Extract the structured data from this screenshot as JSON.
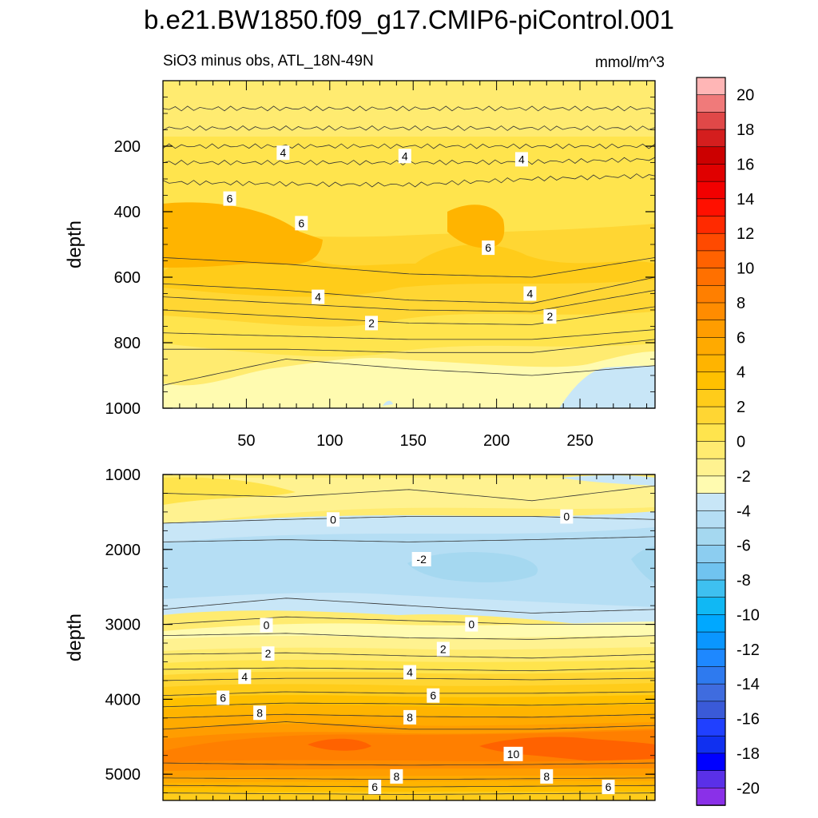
{
  "page": {
    "title": "b.e21.BW1850.f09_g17.CMIP6-piControl.001",
    "subtitle_left": "SiO3 minus obs, ATL_18N-49N",
    "subtitle_right": "mmol/m^3"
  },
  "chart_data": [
    {
      "type": "contour",
      "panel": "upper",
      "xlabel": "",
      "ylabel": "depth",
      "xlim": [
        0,
        295
      ],
      "ylim": [
        1000,
        0
      ],
      "x_ticks": [
        50,
        100,
        150,
        200,
        250
      ],
      "y_ticks": [
        200,
        400,
        600,
        800,
        1000
      ],
      "contour_interval": 1,
      "contour_lines": [
        {
          "level": 5.5,
          "depth": [
            85,
            85,
            85,
            85,
            85
          ]
        },
        {
          "level": 5,
          "depth": [
            145,
            145,
            145,
            145,
            145
          ]
        },
        {
          "level": 4.5,
          "depth": [
            200,
            200,
            200,
            200,
            200
          ]
        },
        {
          "level": 4,
          "depth": [
            250,
            250,
            250,
            248,
            240
          ]
        },
        {
          "level": 4.5,
          "depth": [
            310,
            315,
            318,
            300,
            290
          ]
        },
        {
          "level": 5,
          "depth": [
            540,
            560,
            590,
            600,
            540
          ]
        },
        {
          "level": 4.5,
          "depth": [
            620,
            640,
            670,
            680,
            600
          ]
        },
        {
          "level": 4,
          "depth": [
            660,
            680,
            700,
            705,
            640
          ]
        },
        {
          "level": 3,
          "depth": [
            700,
            720,
            740,
            745,
            690
          ]
        },
        {
          "level": 2,
          "depth": [
            770,
            780,
            790,
            790,
            760
          ]
        },
        {
          "level": 1.5,
          "depth": [
            820,
            820,
            830,
            830,
            790
          ]
        },
        {
          "level": 1,
          "depth": [
            930,
            850,
            880,
            900,
            870
          ]
        }
      ],
      "contour_labels": [
        {
          "text": "4",
          "x": 72,
          "depth": 220
        },
        {
          "text": "4",
          "x": 145,
          "depth": 230
        },
        {
          "text": "4",
          "x": 215,
          "depth": 240
        },
        {
          "text": "6",
          "x": 40,
          "depth": 360
        },
        {
          "text": "6",
          "x": 83,
          "depth": 435
        },
        {
          "text": "6",
          "x": 195,
          "depth": 510
        },
        {
          "text": "4",
          "x": 93,
          "depth": 660
        },
        {
          "text": "4",
          "x": 220,
          "depth": 650
        },
        {
          "text": "2",
          "x": 125,
          "depth": 740
        },
        {
          "text": "2",
          "x": 232,
          "depth": 720
        }
      ]
    },
    {
      "type": "contour",
      "panel": "lower",
      "xlabel": "",
      "ylabel": "depth",
      "xlim": [
        0,
        295
      ],
      "ylim": [
        5350,
        1000
      ],
      "y_ticks": [
        1000,
        2000,
        3000,
        4000,
        5000
      ],
      "contour_interval": 1,
      "contour_lines": [
        {
          "level": 0.5,
          "depth": [
            1250,
            1300,
            1200,
            1350,
            1150
          ]
        },
        {
          "level": 0,
          "depth": [
            1650,
            1600,
            1560,
            1560,
            1600
          ]
        },
        {
          "level": -1,
          "depth": [
            1900,
            1870,
            1900,
            1870,
            1830
          ]
        },
        {
          "level": -1,
          "depth": [
            2800,
            2650,
            2750,
            2850,
            2800
          ]
        },
        {
          "level": 0,
          "depth": [
            3000,
            2900,
            2950,
            3000,
            3000
          ]
        },
        {
          "level": 1,
          "depth": [
            3150,
            3120,
            3180,
            3200,
            3150
          ]
        },
        {
          "level": 2,
          "depth": [
            3400,
            3380,
            3420,
            3450,
            3400
          ]
        },
        {
          "level": 3,
          "depth": [
            3600,
            3580,
            3600,
            3620,
            3580
          ]
        },
        {
          "level": 4,
          "depth": [
            3750,
            3720,
            3720,
            3740,
            3720
          ]
        },
        {
          "level": 5,
          "depth": [
            3950,
            3900,
            3920,
            3920,
            3900
          ]
        },
        {
          "level": 6,
          "depth": [
            4100,
            4050,
            4060,
            4080,
            4050
          ]
        },
        {
          "level": 7,
          "depth": [
            4250,
            4200,
            4230,
            4240,
            4200
          ]
        },
        {
          "level": 8,
          "depth": [
            4400,
            4300,
            4400,
            4400,
            4350
          ]
        },
        {
          "level": 9,
          "depth": [
            4850,
            4870,
            4880,
            4870,
            4850
          ]
        },
        {
          "level": 8,
          "depth": [
            5050,
            5060,
            5070,
            5060,
            5050
          ]
        },
        {
          "level": 7,
          "depth": [
            5150,
            5160,
            5170,
            5160,
            5150
          ]
        },
        {
          "level": 6,
          "depth": [
            5250,
            5260,
            5270,
            5260,
            5250
          ]
        }
      ],
      "contour_labels": [
        {
          "text": "0",
          "x": 102,
          "depth": 1600
        },
        {
          "text": "0",
          "x": 242,
          "depth": 1560
        },
        {
          "text": "-2",
          "x": 155,
          "depth": 2130
        },
        {
          "text": "0",
          "x": 62,
          "depth": 3010
        },
        {
          "text": "0",
          "x": 185,
          "depth": 3000
        },
        {
          "text": "2",
          "x": 63,
          "depth": 3390
        },
        {
          "text": "2",
          "x": 168,
          "depth": 3330
        },
        {
          "text": "4",
          "x": 49,
          "depth": 3700
        },
        {
          "text": "4",
          "x": 148,
          "depth": 3640
        },
        {
          "text": "6",
          "x": 36,
          "depth": 3980
        },
        {
          "text": "6",
          "x": 162,
          "depth": 3950
        },
        {
          "text": "8",
          "x": 58,
          "depth": 4180
        },
        {
          "text": "8",
          "x": 148,
          "depth": 4240
        },
        {
          "text": "10",
          "x": 210,
          "depth": 4730
        },
        {
          "text": "8",
          "x": 140,
          "depth": 5030
        },
        {
          "text": "8",
          "x": 230,
          "depth": 5030
        },
        {
          "text": "6",
          "x": 127,
          "depth": 5170
        },
        {
          "text": "6",
          "x": 267,
          "depth": 5170
        }
      ]
    }
  ],
  "colorbar": {
    "label_values": [
      "20",
      "18",
      "16",
      "14",
      "12",
      "10",
      "8",
      "6",
      "4",
      "2",
      "0",
      "-2",
      "-4",
      "-6",
      "-8",
      "-10",
      "-12",
      "-14",
      "-16",
      "-18",
      "-20"
    ],
    "colors": [
      "#ffb6b6",
      "#f07a7a",
      "#e04848",
      "#d41e1e",
      "#cc0000",
      "#e00000",
      "#f20000",
      "#ff1000",
      "#ff2a00",
      "#ff4a00",
      "#ff6200",
      "#ff7000",
      "#ff7f00",
      "#ff8c00",
      "#ff9d00",
      "#ffaa00",
      "#ffb400",
      "#ffc000",
      "#ffcc1a",
      "#ffd633",
      "#ffe44d",
      "#ffeb70",
      "#fff290",
      "#fffbb0",
      "#c8e6f7",
      "#b5def4",
      "#a5d8f0",
      "#8ccdf0",
      "#70c3f0",
      "#3ec0f0",
      "#10b8f4",
      "#00a8ff",
      "#0a96ff",
      "#1e88ff",
      "#2e7aef",
      "#3f6cdf",
      "#3a5ad8",
      "#2040ff",
      "#1030f0",
      "#0000ff",
      "#5a30e8",
      "#8a30e8"
    ]
  }
}
